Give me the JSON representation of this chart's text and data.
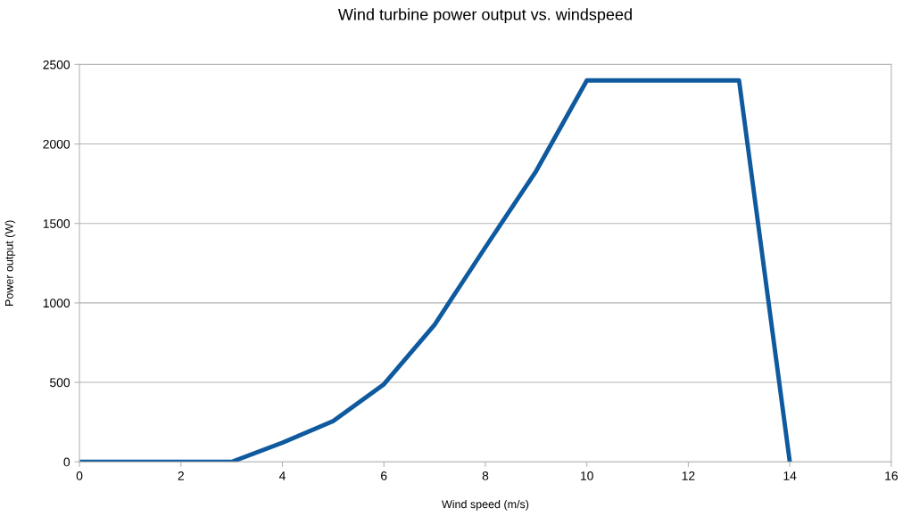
{
  "chart_data": {
    "type": "line",
    "title": "Wind turbine power output vs. windspeed",
    "xlabel": "Wind speed (m/s)",
    "ylabel": "Power output (W)",
    "x": [
      0,
      1,
      2,
      3,
      4,
      5,
      6,
      7,
      8,
      9,
      10,
      11,
      12,
      13,
      14
    ],
    "series": [
      {
        "color": "#0f5a9e",
        "values": [
          0,
          0,
          0,
          0,
          120,
          256,
          488,
          863,
          1350,
          1829,
          2400,
          2400,
          2400,
          2400,
          0
        ]
      }
    ],
    "xlim": [
      0,
      16
    ],
    "xticks": [
      0,
      2,
      4,
      6,
      8,
      10,
      12,
      14,
      16
    ],
    "ylim": [
      0,
      2500
    ],
    "yticks": [
      0,
      500,
      1000,
      1500,
      2000,
      2500
    ],
    "grid": "y",
    "marker": "none",
    "line_style": "solid"
  }
}
